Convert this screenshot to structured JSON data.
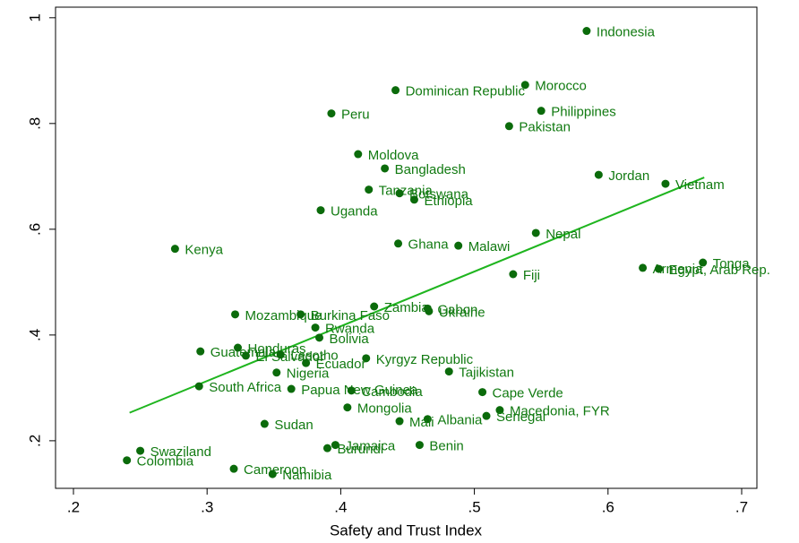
{
  "chart_data": {
    "type": "scatter",
    "x_label": "Safety and Trust Index",
    "xlim": [
      0.1866,
      0.7114
    ],
    "ylim": [
      0.11,
      1.02
    ],
    "xticks": [
      {
        "value": 0.2,
        "label": ".2"
      },
      {
        "value": 0.3,
        "label": ".3"
      },
      {
        "value": 0.4,
        "label": ".4"
      },
      {
        "value": 0.5,
        "label": ".5"
      },
      {
        "value": 0.6,
        "label": ".6"
      },
      {
        "value": 0.7,
        "label": ".7"
      }
    ],
    "yticks": [
      {
        "value": 0.2,
        "label": ".2"
      },
      {
        "value": 0.4,
        "label": ".4"
      },
      {
        "value": 0.6,
        "label": ".6"
      },
      {
        "value": 0.8,
        "label": ".8"
      },
      1
    ],
    "point_color": "#0b6b0b",
    "label_color": "#117a11",
    "fit_line": {
      "color": "#1fb51f",
      "x": [
        0.242,
        0.672
      ],
      "y": [
        0.253,
        0.698
      ]
    },
    "points": [
      {
        "label": "Indonesia",
        "x": 0.584,
        "y": 0.975
      },
      {
        "label": "Morocco",
        "x": 0.538,
        "y": 0.873
      },
      {
        "label": "Dominican Republic",
        "x": 0.441,
        "y": 0.863
      },
      {
        "label": "Philippines",
        "x": 0.55,
        "y": 0.824
      },
      {
        "label": "Peru",
        "x": 0.393,
        "y": 0.819
      },
      {
        "label": "Pakistan",
        "x": 0.526,
        "y": 0.795
      },
      {
        "label": "Moldova",
        "x": 0.413,
        "y": 0.742
      },
      {
        "label": "Bangladesh",
        "x": 0.433,
        "y": 0.715
      },
      {
        "label": "Jordan",
        "x": 0.593,
        "y": 0.703
      },
      {
        "label": "Vietnam",
        "x": 0.643,
        "y": 0.686
      },
      {
        "label": "Tanzania",
        "x": 0.421,
        "y": 0.675
      },
      {
        "label": "Botswana",
        "x": 0.444,
        "y": 0.668
      },
      {
        "label": "Ethiopia",
        "x": 0.455,
        "y": 0.656
      },
      {
        "label": "Uganda",
        "x": 0.385,
        "y": 0.636
      },
      {
        "label": "Nepal",
        "x": 0.546,
        "y": 0.593
      },
      {
        "label": "Ghana",
        "x": 0.443,
        "y": 0.573
      },
      {
        "label": "Malawi",
        "x": 0.488,
        "y": 0.569
      },
      {
        "label": "Kenya",
        "x": 0.276,
        "y": 0.563
      },
      {
        "label": "Tonga",
        "x": 0.671,
        "y": 0.537
      },
      {
        "label": "Armenia",
        "x": 0.626,
        "y": 0.527
      },
      {
        "label": "Egypt, Arab Rep.",
        "x": 0.638,
        "y": 0.525
      },
      {
        "label": "Fiji",
        "x": 0.529,
        "y": 0.515
      },
      {
        "label": "Zambia",
        "x": 0.425,
        "y": 0.454
      },
      {
        "label": "Gabon",
        "x": 0.465,
        "y": 0.45
      },
      {
        "label": "Ukraine",
        "x": 0.466,
        "y": 0.445
      },
      {
        "label": "Mozambique",
        "x": 0.321,
        "y": 0.439
      },
      {
        "label": "Burkina Faso",
        "x": 0.37,
        "y": 0.439
      },
      {
        "label": "Rwanda",
        "x": 0.381,
        "y": 0.414
      },
      {
        "label": "Bolivia",
        "x": 0.384,
        "y": 0.395
      },
      {
        "label": "Guatemala",
        "x": 0.295,
        "y": 0.369
      },
      {
        "label": "Honduras",
        "x": 0.323,
        "y": 0.376
      },
      {
        "label": "El Salvador",
        "x": 0.329,
        "y": 0.361
      },
      {
        "label": "Lesotho",
        "x": 0.355,
        "y": 0.363
      },
      {
        "label": "Ecuador",
        "x": 0.374,
        "y": 0.347
      },
      {
        "label": "Kyrgyz Republic",
        "x": 0.419,
        "y": 0.356
      },
      {
        "label": "Nigeria",
        "x": 0.352,
        "y": 0.329
      },
      {
        "label": "Tajikistan",
        "x": 0.481,
        "y": 0.331
      },
      {
        "label": "South Africa",
        "x": 0.294,
        "y": 0.303
      },
      {
        "label": "Papua New Guinea",
        "x": 0.363,
        "y": 0.298
      },
      {
        "label": "Cambodia",
        "x": 0.408,
        "y": 0.295
      },
      {
        "label": "Cape Verde",
        "x": 0.506,
        "y": 0.292
      },
      {
        "label": "Mongolia",
        "x": 0.405,
        "y": 0.263
      },
      {
        "label": "Macedonia, FYR",
        "x": 0.519,
        "y": 0.258
      },
      {
        "label": "Senegal",
        "x": 0.509,
        "y": 0.247
      },
      {
        "label": "Albania",
        "x": 0.465,
        "y": 0.241
      },
      {
        "label": "Mali",
        "x": 0.444,
        "y": 0.237
      },
      {
        "label": "Sudan",
        "x": 0.343,
        "y": 0.232
      },
      {
        "label": "Benin",
        "x": 0.459,
        "y": 0.192
      },
      {
        "label": "Jamaica",
        "x": 0.396,
        "y": 0.192
      },
      {
        "label": "Burundi",
        "x": 0.39,
        "y": 0.186
      },
      {
        "label": "Swaziland",
        "x": 0.25,
        "y": 0.181
      },
      {
        "label": "Colombia",
        "x": 0.24,
        "y": 0.163
      },
      {
        "label": "Cameroon",
        "x": 0.32,
        "y": 0.147
      },
      {
        "label": "Namibia",
        "x": 0.349,
        "y": 0.137
      }
    ]
  }
}
